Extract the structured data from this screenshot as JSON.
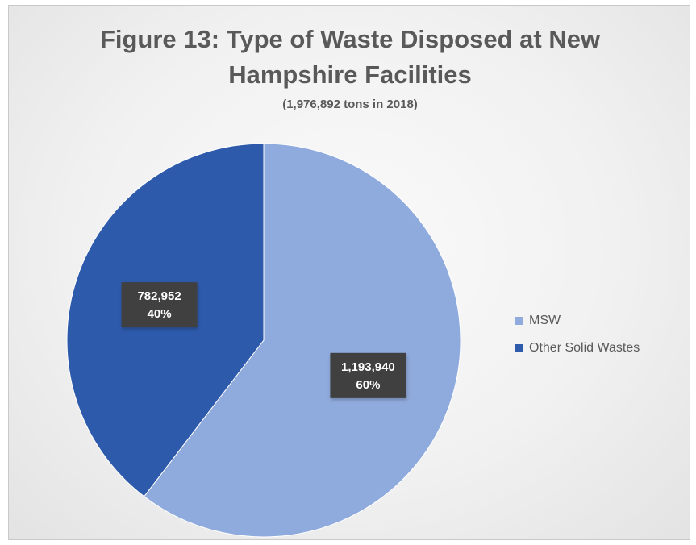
{
  "chart_data": {
    "type": "pie",
    "title_lines": [
      "Figure 13: Type of Waste Disposed at New",
      "Hampshire Facilities"
    ],
    "subtitle": "(1,976,892 tons in 2018)",
    "slices": [
      {
        "name": "MSW",
        "value": 1193940,
        "value_label": "1,193,940",
        "percent_label": "60%",
        "color": "#8faadc"
      },
      {
        "name": "Other Solid Wastes",
        "value": 782952,
        "value_label": "782,952",
        "percent_label": "40%",
        "color": "#2e5aac"
      }
    ],
    "legend_position": "right",
    "start_angle_deg": 0,
    "direction": "clockwise"
  }
}
